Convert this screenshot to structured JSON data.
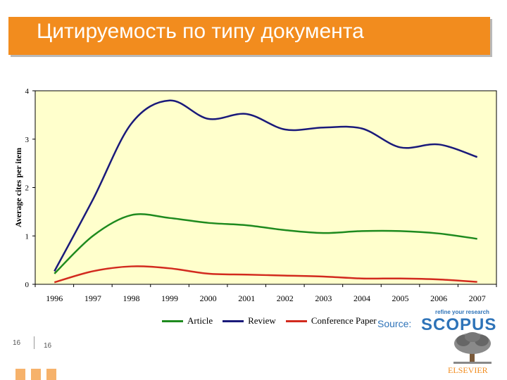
{
  "header": {
    "title": "Цитируемость по типу документа"
  },
  "chart_data": {
    "type": "line",
    "ylabel": "Average cites per item",
    "xlabel": "",
    "categories": [
      "1996",
      "1997",
      "1998",
      "1999",
      "2000",
      "2001",
      "2002",
      "2003",
      "2004",
      "2005",
      "2006",
      "2007"
    ],
    "ylim": [
      0,
      4
    ],
    "yticks": [
      "0",
      "1",
      "2",
      "3",
      "4"
    ],
    "grid": false,
    "legend_position": "bottom",
    "series": [
      {
        "name": "Article",
        "color": "#1e8a1e",
        "values": [
          0.22,
          1.0,
          1.43,
          1.37,
          1.27,
          1.22,
          1.12,
          1.06,
          1.1,
          1.1,
          1.05,
          0.94
        ]
      },
      {
        "name": "Review",
        "color": "#1a1a7a",
        "values": [
          0.27,
          1.75,
          3.32,
          3.8,
          3.42,
          3.52,
          3.2,
          3.24,
          3.22,
          2.83,
          2.89,
          2.63
        ]
      },
      {
        "name": "Conference Paper",
        "color": "#d22a1e",
        "values": [
          0.04,
          0.27,
          0.37,
          0.33,
          0.22,
          0.2,
          0.18,
          0.16,
          0.12,
          0.12,
          0.1,
          0.05
        ]
      }
    ],
    "plot_background": "#ffffcc"
  },
  "branding": {
    "source_label": "Source:",
    "scopus_tag": "refine your research",
    "scopus_logo": "SCOPUS",
    "publisher": "ELSEVIER"
  },
  "footer": {
    "page_left": "16",
    "page_right": "16"
  },
  "icons": {
    "tree": "elsevier-tree-icon"
  }
}
